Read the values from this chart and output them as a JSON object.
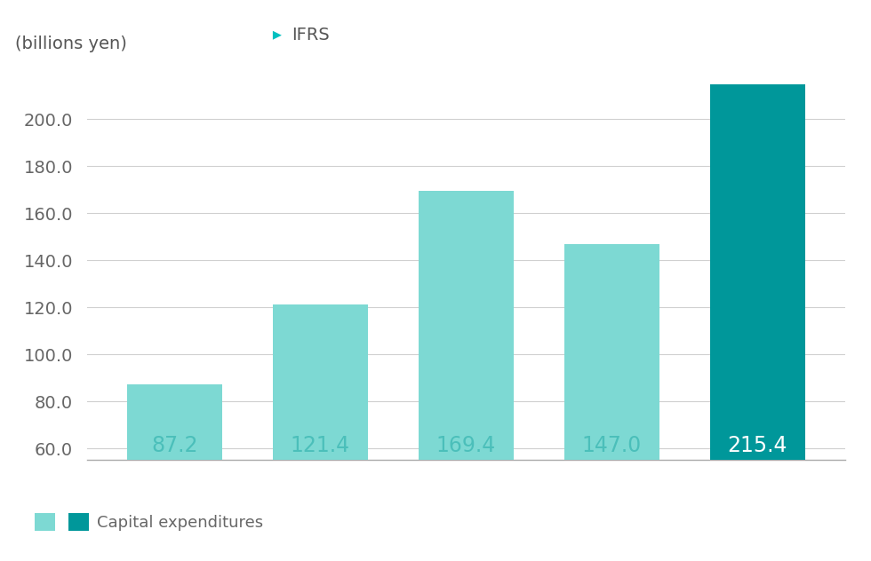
{
  "values": [
    87.2,
    121.4,
    169.4,
    147.0,
    215.4
  ],
  "bar_colors": [
    "#7DD9D3",
    "#7DD9D3",
    "#7DD9D3",
    "#7DD9D3",
    "#00979A"
  ],
  "light_teal": "#7DD9D3",
  "dark_teal": "#00979A",
  "label_color_light": "#4BBFBA",
  "label_color_dark": "#ffffff",
  "ylabel": "(billions yen)",
  "yticks": [
    60.0,
    80.0,
    100.0,
    120.0,
    140.0,
    160.0,
    180.0,
    200.0
  ],
  "ylim_min": 55,
  "ylim_max": 215,
  "grid_color": "#d0d0d0",
  "background_color": "#ffffff",
  "ifrs_label": "IFRS",
  "legend_label": "Capital expenditures",
  "ifrs_arrow_color": "#00C0C0",
  "label_fontsize": 17,
  "axis_fontsize": 14,
  "tick_fontsize": 14,
  "bar_width": 0.65,
  "ylabel_color": "#555555",
  "tick_color": "#666666"
}
